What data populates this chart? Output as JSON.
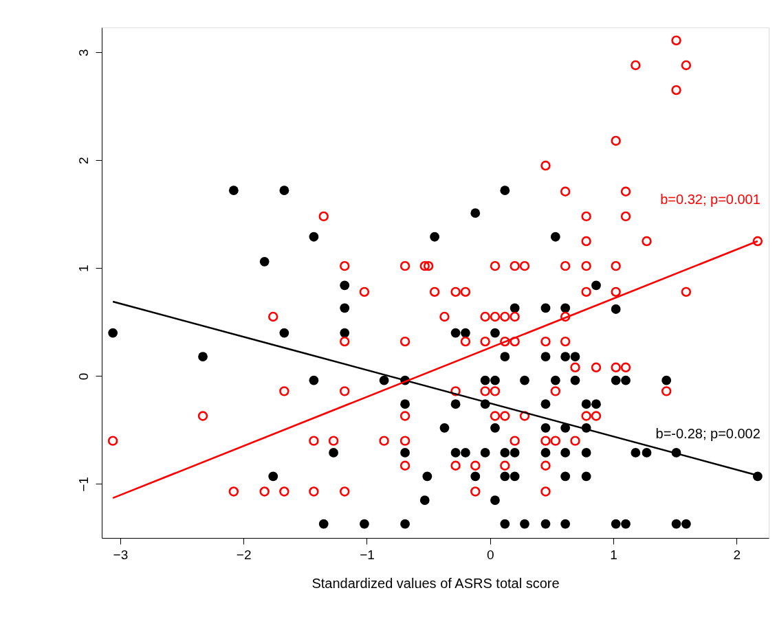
{
  "chart_data": {
    "type": "scatter",
    "xlabel": "Standardized values of ASRS total score",
    "xlim": [
      -3.15,
      2.26
    ],
    "xticks": [
      -3,
      -2,
      -1,
      0,
      1,
      2
    ],
    "ylim": [
      -1.5,
      3.23
    ],
    "yticks": [
      -1,
      0,
      1,
      2,
      3
    ],
    "grid": false,
    "series": [
      {
        "color": "#000000",
        "marker": "circle",
        "x": [
          -2.08,
          -1.67,
          -1.43,
          -1.83,
          -1.18,
          -1.18,
          -3.06,
          -1.67,
          -1.18,
          -2.33,
          -1.43,
          -0.86,
          -0.69,
          -0.69,
          -1.27,
          -0.69,
          -1.76,
          -1.35,
          -1.02,
          -0.69,
          0.12,
          -0.12,
          -0.45,
          0.53,
          0.86,
          0.2,
          0.45,
          0.61,
          -0.28,
          -0.2,
          0.04,
          0.12,
          0.45,
          0.61,
          0.69,
          -0.04,
          0.04,
          0.28,
          0.53,
          0.69,
          -0.28,
          -0.04,
          0.45,
          0.78,
          0.86,
          -0.37,
          0.04,
          0.45,
          0.61,
          0.78,
          -0.28,
          -0.2,
          -0.04,
          0.12,
          0.2,
          0.45,
          0.61,
          0.78,
          -0.51,
          -0.12,
          0.12,
          0.2,
          0.61,
          0.78,
          -0.53,
          0.04,
          0.12,
          0.28,
          0.45,
          0.61,
          1.02,
          1.02,
          1.1,
          1.43,
          1.18,
          1.27,
          1.51,
          2.17,
          1.02,
          1.1,
          1.51,
          1.59
        ],
        "values": [
          1.72,
          1.72,
          1.29,
          1.06,
          0.84,
          0.63,
          0.4,
          0.4,
          0.4,
          0.18,
          -0.04,
          -0.04,
          -0.04,
          -0.26,
          -0.71,
          -0.71,
          -0.93,
          -1.37,
          -1.37,
          -1.37,
          1.72,
          1.51,
          1.29,
          1.29,
          0.84,
          0.63,
          0.63,
          0.63,
          0.4,
          0.4,
          0.4,
          0.18,
          0.18,
          0.18,
          0.18,
          -0.04,
          -0.04,
          -0.04,
          -0.04,
          -0.04,
          -0.26,
          -0.26,
          -0.26,
          -0.26,
          -0.26,
          -0.48,
          -0.48,
          -0.48,
          -0.48,
          -0.48,
          -0.71,
          -0.71,
          -0.71,
          -0.71,
          -0.71,
          -0.71,
          -0.71,
          -0.71,
          -0.93,
          -0.93,
          -0.93,
          -0.93,
          -0.93,
          -0.93,
          -1.15,
          -1.15,
          -1.37,
          -1.37,
          -1.37,
          -1.37,
          0.62,
          -0.04,
          -0.04,
          -0.04,
          -0.71,
          -0.71,
          -0.71,
          -0.93,
          -1.37,
          -1.37,
          -1.37,
          -1.37
        ]
      },
      {
        "color": "#ff0000",
        "marker": "circle",
        "x": [
          -1.35,
          -1.18,
          -0.69,
          -1.02,
          -1.76,
          -1.18,
          -0.69,
          -1.67,
          -1.18,
          -2.33,
          -0.69,
          -3.06,
          -1.43,
          -1.27,
          -0.86,
          -0.69,
          -0.69,
          -2.08,
          -1.83,
          -1.67,
          -1.43,
          -1.18,
          0.45,
          0.61,
          0.78,
          0.78,
          -0.53,
          -0.5,
          0.04,
          0.2,
          0.28,
          0.61,
          0.78,
          -0.45,
          -0.28,
          -0.2,
          0.78,
          -0.37,
          -0.04,
          0.04,
          0.12,
          0.2,
          0.61,
          -0.2,
          -0.04,
          0.12,
          0.2,
          0.45,
          0.61,
          0.69,
          0.86,
          -0.28,
          -0.04,
          0.04,
          0.53,
          0.04,
          0.12,
          0.28,
          0.78,
          0.86,
          0.2,
          0.45,
          0.53,
          0.69,
          -0.28,
          -0.12,
          0.12,
          0.45,
          -0.12,
          0.45,
          1.51,
          1.18,
          1.59,
          1.51,
          1.02,
          1.1,
          1.1,
          1.27,
          2.17,
          1.02,
          1.02,
          1.59,
          1.02,
          1.1,
          1.43
        ],
        "values": [
          1.48,
          1.02,
          1.02,
          0.78,
          0.55,
          0.32,
          0.32,
          -0.14,
          -0.14,
          -0.37,
          -0.37,
          -0.6,
          -0.6,
          -0.6,
          -0.6,
          -0.6,
          -0.83,
          -1.07,
          -1.07,
          -1.07,
          -1.07,
          -1.07,
          1.95,
          1.71,
          1.48,
          1.25,
          1.02,
          1.02,
          1.02,
          1.02,
          1.02,
          1.02,
          1.02,
          0.78,
          0.78,
          0.78,
          0.78,
          0.55,
          0.55,
          0.55,
          0.55,
          0.55,
          0.55,
          0.32,
          0.32,
          0.32,
          0.32,
          0.32,
          0.32,
          0.08,
          0.08,
          -0.14,
          -0.14,
          -0.14,
          -0.14,
          -0.37,
          -0.37,
          -0.37,
          -0.37,
          -0.37,
          -0.6,
          -0.6,
          -0.6,
          -0.6,
          -0.83,
          -0.83,
          -0.83,
          -0.83,
          -1.07,
          -1.07,
          3.11,
          2.88,
          2.88,
          2.65,
          2.18,
          1.71,
          1.48,
          1.25,
          1.25,
          1.02,
          0.78,
          0.78,
          0.08,
          0.08,
          -0.14
        ]
      },
      {
        "type": "line",
        "name": "b=-0.28; p=0.002",
        "color": "#000000",
        "line_style": "solid",
        "x": [
          -3.06,
          2.17
        ],
        "values": [
          0.69,
          -0.92
        ]
      },
      {
        "type": "line",
        "name": "b=0.32; p=0.001",
        "color": "#ff0000",
        "line_style": "solid",
        "x": [
          -3.06,
          2.17
        ],
        "values": [
          -1.13,
          1.25
        ]
      }
    ]
  }
}
